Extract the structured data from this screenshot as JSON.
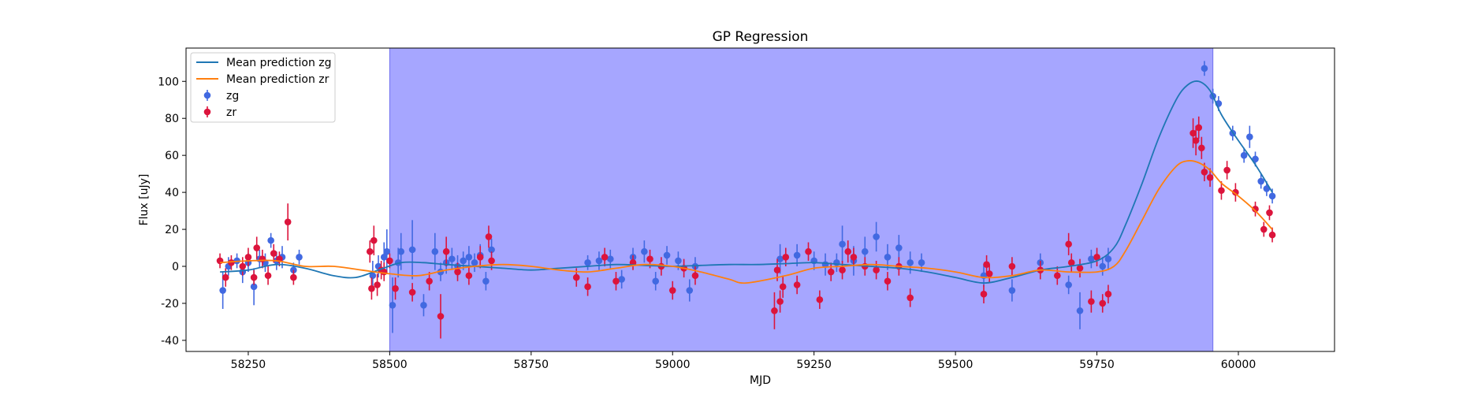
{
  "chart_data": {
    "type": "scatter",
    "title": "GP Regression",
    "xlabel": "MJD",
    "ylabel": "Flux [uJy]",
    "xlim": [
      58140,
      60170
    ],
    "ylim": [
      -46,
      118
    ],
    "xticks": [
      58250,
      58500,
      58750,
      59000,
      59250,
      59500,
      59750,
      60000
    ],
    "yticks": [
      -40,
      -20,
      0,
      20,
      40,
      60,
      80,
      100
    ],
    "grid": false,
    "legend_position": "top-left",
    "shaded_region": {
      "x_start": 58500,
      "x_end": 59955,
      "color": "#a6a6ff"
    },
    "mean_series": [
      {
        "name": "Mean prediction zg",
        "color": "#1f77b4",
        "x": [
          58200,
          58250,
          58300,
          58350,
          58400,
          58440,
          58480,
          58520,
          58560,
          58600,
          58650,
          58700,
          58750,
          58800,
          58850,
          58900,
          58950,
          59000,
          59050,
          59100,
          59150,
          59200,
          59250,
          59300,
          59350,
          59400,
          59450,
          59500,
          59550,
          59600,
          59650,
          59700,
          59750,
          59780,
          59800,
          59830,
          59860,
          59890,
          59910,
          59930,
          59950,
          59970,
          60000,
          60030,
          60060
        ],
        "y": [
          -3,
          -2,
          1,
          -1,
          -5,
          -6,
          -2,
          2,
          2,
          1,
          0,
          -1,
          -2,
          -1,
          0,
          1,
          0.5,
          0,
          0.5,
          1,
          1,
          1.5,
          2,
          1,
          0,
          -1,
          -3,
          -6,
          -9,
          -6,
          -2,
          0,
          3,
          10,
          22,
          45,
          70,
          90,
          98,
          100,
          95,
          82,
          68,
          55,
          40
        ]
      },
      {
        "name": "Mean prediction zr",
        "color": "#ff7f0e",
        "x": [
          58200,
          58250,
          58300,
          58350,
          58400,
          58450,
          58500,
          58550,
          58600,
          58650,
          58700,
          58750,
          58800,
          58850,
          58900,
          58950,
          59000,
          59050,
          59100,
          59130,
          59200,
          59250,
          59300,
          59350,
          59400,
          59450,
          59500,
          59550,
          59600,
          59650,
          59700,
          59750,
          59780,
          59800,
          59830,
          59860,
          59890,
          59910,
          59930,
          59950,
          59970,
          60000,
          60030,
          60060
        ],
        "y": [
          2,
          3,
          3,
          0,
          0,
          -2,
          -4,
          -5,
          -2,
          0,
          1,
          0,
          -2,
          -3,
          -1,
          1,
          0,
          -3,
          -7,
          -9,
          -5,
          -1,
          0,
          1,
          0,
          -1,
          -3,
          -6,
          -5,
          -2,
          -3,
          -3,
          0,
          8,
          25,
          42,
          54,
          57,
          56,
          52,
          45,
          38,
          30,
          20
        ]
      }
    ],
    "scatter_series": [
      {
        "name": "zg",
        "color": "#4169e1",
        "x": [
          58205,
          58215,
          58230,
          58240,
          58250,
          58260,
          58270,
          58280,
          58290,
          58300,
          58310,
          58330,
          58340,
          58470,
          58480,
          58490,
          58495,
          58505,
          58515,
          58520,
          58540,
          58560,
          58580,
          58590,
          58600,
          58610,
          58620,
          58630,
          58640,
          58650,
          58660,
          58670,
          58680,
          58850,
          58870,
          58890,
          58910,
          58930,
          58950,
          58970,
          58990,
          59010,
          59030,
          59040,
          59190,
          59220,
          59250,
          59270,
          59290,
          59300,
          59320,
          59340,
          59360,
          59380,
          59400,
          59420,
          59440,
          59550,
          59600,
          59650,
          59700,
          59720,
          59740,
          59760,
          59770,
          59940,
          59955,
          59965,
          59990,
          60010,
          60020,
          60030,
          60040,
          60050,
          60060
        ],
        "y": [
          -13,
          0,
          3,
          -3,
          2,
          -11,
          4,
          2,
          14,
          3,
          5,
          -2,
          5,
          -5,
          0,
          5,
          8,
          -21,
          2,
          8,
          9,
          -21,
          8,
          -3,
          2,
          4,
          0,
          3,
          5,
          2,
          6,
          -8,
          9,
          2,
          3,
          4,
          -7,
          5,
          8,
          -8,
          6,
          3,
          -13,
          0,
          4,
          6,
          3,
          1,
          2,
          12,
          3,
          8,
          16,
          5,
          10,
          2,
          2,
          -5,
          -13,
          2,
          -10,
          -24,
          4,
          0,
          4,
          107,
          92,
          88,
          72,
          60,
          70,
          58,
          46,
          42,
          38
        ],
        "err": [
          10,
          5,
          4,
          6,
          5,
          10,
          5,
          5,
          4,
          5,
          6,
          4,
          4,
          8,
          6,
          8,
          12,
          15,
          8,
          10,
          16,
          6,
          10,
          5,
          6,
          6,
          6,
          5,
          6,
          5,
          6,
          5,
          6,
          4,
          5,
          5,
          5,
          5,
          6,
          5,
          5,
          5,
          6,
          5,
          8,
          6,
          5,
          6,
          5,
          10,
          8,
          8,
          8,
          7,
          7,
          6,
          5,
          6,
          6,
          5,
          5,
          10,
          5,
          5,
          6,
          4,
          4,
          4,
          4,
          4,
          6,
          4,
          4,
          4,
          4
        ]
      },
      {
        "name": "zr",
        "color": "#dc143c",
        "x": [
          58200,
          58210,
          58220,
          58240,
          58250,
          58260,
          58265,
          58275,
          58285,
          58295,
          58305,
          58320,
          58330,
          58465,
          58468,
          58472,
          58478,
          58485,
          58490,
          58500,
          58510,
          58540,
          58570,
          58590,
          58600,
          58620,
          58640,
          58660,
          58675,
          58680,
          58830,
          58850,
          58880,
          58900,
          58930,
          58960,
          58980,
          59000,
          59020,
          59040,
          59180,
          59185,
          59190,
          59195,
          59200,
          59220,
          59240,
          59260,
          59280,
          59300,
          59310,
          59320,
          59340,
          59360,
          59380,
          59400,
          59420,
          59550,
          59555,
          59560,
          59600,
          59650,
          59680,
          59700,
          59705,
          59720,
          59740,
          59750,
          59760,
          59770,
          59920,
          59925,
          59930,
          59935,
          59940,
          59950,
          59970,
          59980,
          59995,
          60030,
          60045,
          60055,
          60060
        ],
        "y": [
          3,
          -6,
          2,
          0,
          5,
          -6,
          10,
          4,
          -5,
          7,
          4,
          24,
          -6,
          8,
          -12,
          14,
          -10,
          -2,
          -3,
          3,
          -12,
          -14,
          -8,
          -27,
          8,
          -3,
          -5,
          5,
          16,
          3,
          -6,
          -11,
          5,
          -8,
          2,
          4,
          0,
          -13,
          -1,
          -5,
          -24,
          -2,
          -19,
          -11,
          5,
          -10,
          8,
          -18,
          -3,
          -2,
          8,
          5,
          0,
          -2,
          -8,
          0,
          -17,
          -15,
          1,
          -4,
          0,
          -2,
          -5,
          12,
          2,
          -1,
          -19,
          5,
          -20,
          -15,
          72,
          68,
          75,
          64,
          51,
          48,
          41,
          52,
          40,
          31,
          20,
          29,
          17
        ],
        "err": [
          4,
          5,
          4,
          5,
          5,
          4,
          6,
          5,
          5,
          5,
          4,
          10,
          4,
          6,
          6,
          8,
          6,
          5,
          5,
          4,
          6,
          5,
          5,
          12,
          8,
          5,
          5,
          6,
          6,
          5,
          5,
          5,
          5,
          5,
          4,
          5,
          5,
          5,
          5,
          5,
          10,
          6,
          6,
          6,
          5,
          5,
          5,
          5,
          5,
          5,
          6,
          5,
          5,
          5,
          5,
          5,
          5,
          5,
          5,
          5,
          5,
          5,
          5,
          6,
          5,
          5,
          6,
          5,
          5,
          5,
          8,
          8,
          6,
          6,
          5,
          5,
          5,
          5,
          5,
          4,
          4,
          4,
          4
        ]
      }
    ]
  }
}
